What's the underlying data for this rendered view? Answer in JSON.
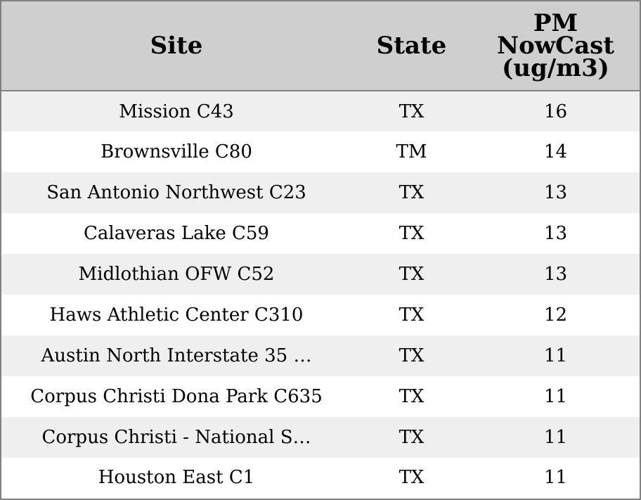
{
  "colors": {
    "header_bg": "#cfcfcf",
    "row_odd_bg": "#efefef",
    "row_even_bg": "#ffffff",
    "border": "#808080",
    "text": "#000000"
  },
  "table": {
    "headers": {
      "site": "Site",
      "state": "State",
      "pm_line1": "PM",
      "pm_line2": "NowCast",
      "pm_line3": "(ug/m3)"
    },
    "rows": [
      {
        "site": "Mission C43",
        "state": "TX",
        "pm": "16"
      },
      {
        "site": "Brownsville C80",
        "state": "TM",
        "pm": "14"
      },
      {
        "site": "San Antonio Northwest C23",
        "state": "TX",
        "pm": "13"
      },
      {
        "site": "Calaveras Lake C59",
        "state": "TX",
        "pm": "13"
      },
      {
        "site": "Midlothian OFW C52",
        "state": "TX",
        "pm": "13"
      },
      {
        "site": "Haws Athletic Center C310",
        "state": "TX",
        "pm": "12"
      },
      {
        "site": "Austin North Interstate 35 …",
        "state": "TX",
        "pm": "11"
      },
      {
        "site": "Corpus Christi Dona Park C635",
        "state": "TX",
        "pm": "11"
      },
      {
        "site": "Corpus Christi - National S…",
        "state": "TX",
        "pm": "11"
      },
      {
        "site": "Houston East C1",
        "state": "TX",
        "pm": "11"
      }
    ]
  },
  "chart_data": {
    "type": "table",
    "columns": [
      "Site",
      "State",
      "PM NowCast (ug/m3)"
    ],
    "rows": [
      [
        "Mission C43",
        "TX",
        16
      ],
      [
        "Brownsville C80",
        "TM",
        14
      ],
      [
        "San Antonio Northwest C23",
        "TX",
        13
      ],
      [
        "Calaveras Lake C59",
        "TX",
        13
      ],
      [
        "Midlothian OFW C52",
        "TX",
        13
      ],
      [
        "Haws Athletic Center C310",
        "TX",
        12
      ],
      [
        "Austin North Interstate 35 …",
        "TX",
        11
      ],
      [
        "Corpus Christi Dona Park C635",
        "TX",
        11
      ],
      [
        "Corpus Christi - National S…",
        "TX",
        11
      ],
      [
        "Houston East C1",
        "TX",
        11
      ]
    ]
  }
}
